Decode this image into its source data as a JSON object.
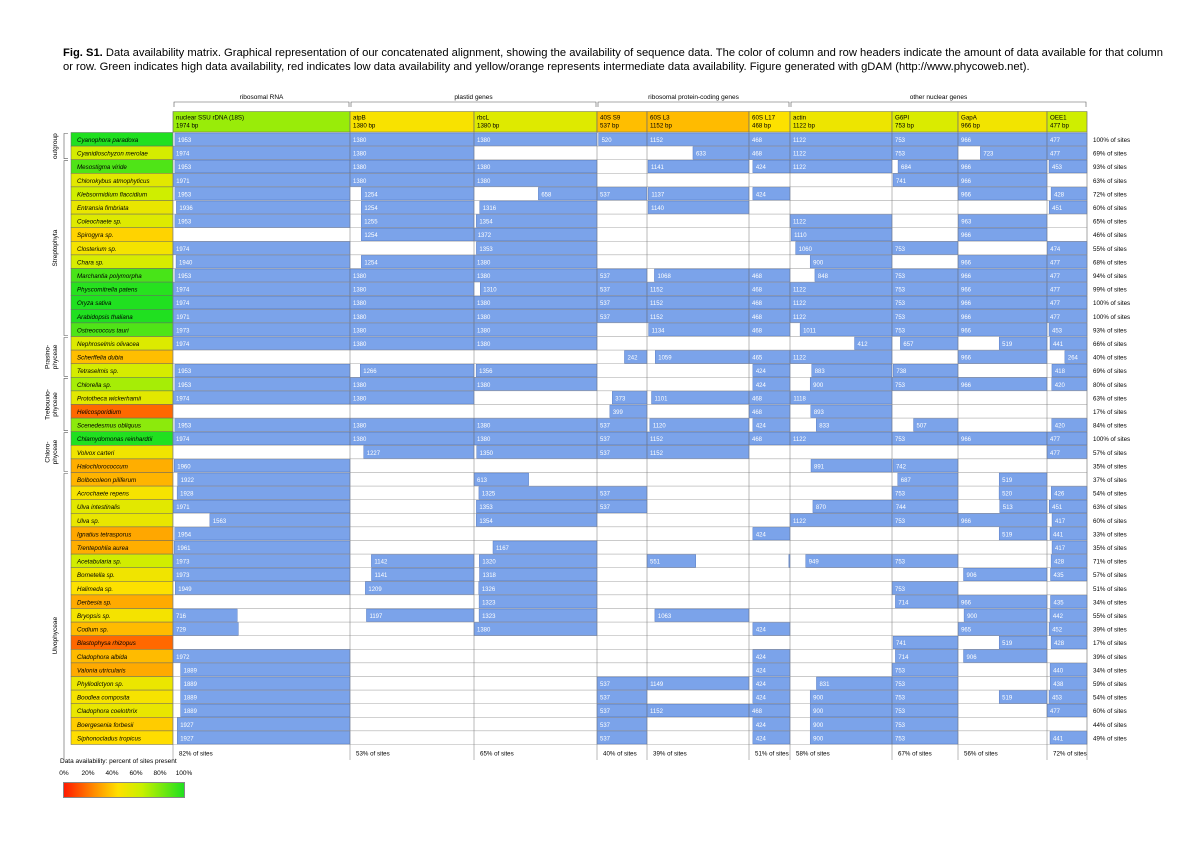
{
  "caption": {
    "label": "Fig. S1.",
    "text": "Data availability matrix. Graphical representation of our concatenated alignment, showing the availability of sequence data. The color of column and row headers indicate the amount of data available for that column or row. Green indicates high data availability, red indicates low data availability and yellow/orange represents intermediate data availability. Figure generated with gDAM (http://www.phycoweb.net)."
  },
  "legend": {
    "title": "Data availability: percent of sites present",
    "ticks": [
      "0%",
      "20%",
      "40%",
      "60%",
      "80%",
      "100%"
    ]
  },
  "colors": {
    "data_cell": "#7ba3ea",
    "data_text": "#ffffff",
    "scale": [
      "#ff1a00",
      "#ff8c00",
      "#ffe000",
      "#c8f000",
      "#20e020"
    ]
  },
  "chart_data": {
    "type": "table",
    "groups": [
      {
        "label": "ribosomal RNA",
        "genes": [
          0
        ]
      },
      {
        "label": "plastid genes",
        "genes": [
          1,
          2
        ]
      },
      {
        "label": "ribosomal protein-coding genes",
        "genes": [
          3,
          4,
          5
        ]
      },
      {
        "label": "other nuclear genes",
        "genes": [
          6,
          7,
          8,
          9
        ]
      }
    ],
    "genes": [
      {
        "name": "nuclear SSU rDNA (18S)",
        "length": "1974 bp",
        "bp": 1974,
        "pct": 82,
        "pct_label": "82% of sites"
      },
      {
        "name": "atpB",
        "length": "1380 bp",
        "bp": 1380,
        "pct": 53,
        "pct_label": "53% of sites"
      },
      {
        "name": "rbcL",
        "length": "1380 bp",
        "bp": 1380,
        "pct": 65,
        "pct_label": "65% of sites"
      },
      {
        "name": "40S S9",
        "length": "537 bp",
        "bp": 537,
        "pct": 40,
        "pct_label": "40% of sites"
      },
      {
        "name": "60S L3",
        "length": "1152 bp",
        "bp": 1152,
        "pct": 39,
        "pct_label": "39% of sites"
      },
      {
        "name": "60S L17",
        "length": "468 bp",
        "bp": 468,
        "pct": 51,
        "pct_label": "51% of sites"
      },
      {
        "name": "actin",
        "length": "1122 bp",
        "bp": 1122,
        "pct": 58,
        "pct_label": "58% of sites"
      },
      {
        "name": "G6PI",
        "length": "753 bp",
        "bp": 753,
        "pct": 67,
        "pct_label": "67% of sites"
      },
      {
        "name": "GapA",
        "length": "966 bp",
        "bp": 966,
        "pct": 56,
        "pct_label": "56% of sites"
      },
      {
        "name": "OEE1",
        "length": "477 bp",
        "bp": 477,
        "pct": 72,
        "pct_label": "72% of sites"
      }
    ],
    "clades": [
      {
        "label": "outgroup",
        "from": 0,
        "to": 1
      },
      {
        "label": "Streptophyta",
        "from": 2,
        "to": 14
      },
      {
        "label": "Prasino-\nphyceae",
        "from": 15,
        "to": 17
      },
      {
        "label": "Trebouxio-\nphyceae",
        "from": 18,
        "to": 21
      },
      {
        "label": "Chloro-\nphyceae",
        "from": 22,
        "to": 24
      },
      {
        "label": "Ulvophyceae",
        "from": 25,
        "to": 48
      }
    ],
    "taxa": [
      {
        "name": "Cyanophora paradoxa",
        "pct": 100,
        "cells": [
          1953,
          1380,
          1380,
          520,
          1152,
          468,
          1122,
          753,
          966,
          477
        ]
      },
      {
        "name": "Cyanidioschyzon merolae",
        "pct": 69,
        "cells": [
          1974,
          1380,
          null,
          null,
          [
            633,
            "r"
          ],
          468,
          1122,
          753,
          [
            723,
            "r"
          ],
          477
        ]
      },
      {
        "name": "Mesostigma viride",
        "pct": 93,
        "cells": [
          1953,
          1380,
          1380,
          null,
          1141,
          424,
          1122,
          [
            684,
            "r"
          ],
          966,
          453
        ]
      },
      {
        "name": "Chlorokybus atmophyticus",
        "pct": 63,
        "cells": [
          1971,
          1380,
          1380,
          null,
          null,
          null,
          null,
          741,
          966,
          null
        ]
      },
      {
        "name": "Klebsormidium flaccidium",
        "pct": 72,
        "cells": [
          1953,
          [
            1254,
            "r"
          ],
          [
            658,
            "r"
          ],
          537,
          1137,
          424,
          null,
          null,
          966,
          428
        ]
      },
      {
        "name": "Entransia fimbriata",
        "pct": 60,
        "cells": [
          [
            1936,
            "r"
          ],
          [
            1254,
            "r"
          ],
          [
            1316,
            "r"
          ],
          null,
          1140,
          null,
          null,
          null,
          null,
          451
        ]
      },
      {
        "name": "Coleochaete sp.",
        "pct": 65,
        "cells": [
          1953,
          [
            1255,
            "r"
          ],
          1354,
          null,
          null,
          null,
          1122,
          null,
          963,
          null
        ]
      },
      {
        "name": "Spirogyra sp.",
        "pct": 46,
        "cells": [
          null,
          [
            1254,
            "r"
          ],
          1372,
          null,
          null,
          null,
          1110,
          null,
          966,
          null
        ]
      },
      {
        "name": "Closterium sp.",
        "pct": 55,
        "cells": [
          1974,
          null,
          1353,
          null,
          null,
          null,
          [
            1060,
            "r"
          ],
          753,
          null,
          474
        ]
      },
      {
        "name": "Chara sp.",
        "pct": 68,
        "cells": [
          [
            1940,
            "r"
          ],
          [
            1254,
            "r"
          ],
          1380,
          null,
          null,
          null,
          [
            900,
            "r"
          ],
          null,
          966,
          477
        ]
      },
      {
        "name": "Marchantia polymorpha",
        "pct": 94,
        "cells": [
          1953,
          1380,
          1380,
          537,
          [
            1068,
            "r"
          ],
          468,
          [
            848,
            "r"
          ],
          753,
          966,
          477
        ]
      },
      {
        "name": "Physcomitrella patens",
        "pct": 99,
        "cells": [
          1974,
          1380,
          [
            1310,
            "r"
          ],
          537,
          1152,
          468,
          1122,
          753,
          966,
          477
        ]
      },
      {
        "name": "Oryza sativa",
        "pct": 100,
        "cells": [
          1974,
          1380,
          1380,
          537,
          1152,
          468,
          1122,
          753,
          966,
          477
        ]
      },
      {
        "name": "Arabidopsis thaliana",
        "pct": 100,
        "cells": [
          1971,
          1380,
          1380,
          537,
          1152,
          468,
          1122,
          753,
          966,
          477
        ]
      },
      {
        "name": "Ostreococcus tauri",
        "pct": 93,
        "cells": [
          1973,
          1380,
          1380,
          null,
          [
            1134,
            "r"
          ],
          468,
          [
            1011,
            "r"
          ],
          753,
          966,
          453
        ]
      },
      {
        "name": "Nephroselmis olivacea",
        "pct": 66,
        "cells": [
          1974,
          1380,
          1380,
          null,
          null,
          null,
          [
            412,
            "r"
          ],
          [
            657,
            "r"
          ],
          [
            519,
            "r"
          ],
          441
        ]
      },
      {
        "name": "Scherffelia dubia",
        "pct": 40,
        "cells": [
          null,
          null,
          null,
          [
            242,
            "r"
          ],
          [
            1059,
            "r"
          ],
          465,
          1122,
          null,
          966,
          [
            264,
            "r"
          ]
        ]
      },
      {
        "name": "Tetraselmis sp.",
        "pct": 69,
        "cells": [
          1953,
          [
            1266,
            "r"
          ],
          1356,
          null,
          null,
          424,
          [
            883,
            "r"
          ],
          738,
          null,
          [
            418,
            "r"
          ]
        ]
      },
      {
        "name": "Chlorella sp.",
        "pct": 80,
        "cells": [
          1953,
          1380,
          1380,
          null,
          null,
          424,
          900,
          753,
          966,
          420
        ]
      },
      {
        "name": "Prototheca wickerhamii",
        "pct": 63,
        "cells": [
          1974,
          1380,
          null,
          [
            373,
            "r"
          ],
          [
            1101,
            "r"
          ],
          468,
          1118,
          null,
          null,
          null
        ]
      },
      {
        "name": "Helicosporidium",
        "pct": 17,
        "cells": [
          null,
          null,
          null,
          399,
          null,
          468,
          [
            893,
            "r"
          ],
          null,
          null,
          null
        ]
      },
      {
        "name": "Scenedesmus obliquus",
        "pct": 84,
        "cells": [
          1953,
          1380,
          1380,
          537,
          1120,
          424,
          [
            833,
            "r"
          ],
          [
            507,
            "r"
          ],
          null,
          420
        ]
      },
      {
        "name": "Chlamydomonas reinhardtii",
        "pct": 100,
        "cells": [
          1974,
          1380,
          1380,
          537,
          1152,
          468,
          1122,
          753,
          966,
          477
        ]
      },
      {
        "name": "Volvox carteri",
        "pct": 57,
        "cells": [
          null,
          [
            1227,
            "r"
          ],
          1350,
          537,
          1152,
          null,
          null,
          null,
          null,
          477
        ]
      },
      {
        "name": "Halochlorococcum",
        "pct": 35,
        "cells": [
          1960,
          null,
          null,
          null,
          null,
          null,
          [
            891,
            "r"
          ],
          742,
          null,
          null
        ]
      },
      {
        "name": "Bolbocoleon piliferum",
        "pct": 37,
        "cells": [
          [
            1922,
            "r"
          ],
          null,
          [
            613,
            "l"
          ],
          null,
          null,
          null,
          null,
          [
            687,
            "r"
          ],
          [
            519,
            "r"
          ],
          null
        ]
      },
      {
        "name": "Acrochaete repens",
        "pct": 54,
        "cells": [
          [
            1928,
            "r"
          ],
          null,
          [
            1325,
            "r"
          ],
          537,
          null,
          null,
          null,
          753,
          [
            520,
            "r"
          ],
          [
            426,
            "r"
          ]
        ]
      },
      {
        "name": "Ulva intestinalis",
        "pct": 63,
        "cells": [
          1971,
          null,
          1353,
          537,
          null,
          null,
          [
            870,
            "r"
          ],
          744,
          [
            513,
            "r"
          ],
          451
        ]
      },
      {
        "name": "Ulva sp.",
        "pct": 60,
        "cells": [
          [
            1563,
            "r"
          ],
          null,
          1354,
          null,
          null,
          null,
          1122,
          753,
          966,
          [
            417,
            "r"
          ]
        ]
      },
      {
        "name": "Ignatius tetrasporus",
        "pct": 33,
        "cells": [
          1954,
          null,
          null,
          null,
          null,
          424,
          null,
          null,
          [
            519,
            "r"
          ],
          441
        ]
      },
      {
        "name": "Trentepohlia aurea",
        "pct": 35,
        "cells": [
          1961,
          null,
          [
            1167,
            "r"
          ],
          null,
          null,
          null,
          null,
          null,
          null,
          [
            417,
            "r"
          ]
        ]
      },
      {
        "name": "Acetabularia sp.",
        "pct": 71,
        "cells": [
          1973,
          [
            1142,
            "r"
          ],
          1320,
          null,
          [
            551,
            "l"
          ],
          [
            13,
            "r"
          ],
          [
            949,
            "r"
          ],
          753,
          null,
          428
        ]
      },
      {
        "name": "Bornetella sp.",
        "pct": 57,
        "cells": [
          1973,
          [
            1141,
            "r"
          ],
          1318,
          null,
          null,
          null,
          null,
          null,
          [
            906,
            "r"
          ],
          [
            435,
            "r"
          ]
        ]
      },
      {
        "name": "Halimeda sp.",
        "pct": 51,
        "cells": [
          1949,
          [
            1209,
            "r"
          ],
          1326,
          null,
          null,
          null,
          null,
          753,
          null,
          null
        ]
      },
      {
        "name": "Derbesia sp.",
        "pct": 34,
        "cells": [
          null,
          null,
          1323,
          null,
          null,
          null,
          null,
          [
            714,
            "r"
          ],
          966,
          [
            435,
            "r"
          ]
        ]
      },
      {
        "name": "Bryopsis sp.",
        "pct": 55,
        "cells": [
          [
            716,
            "l"
          ],
          [
            1197,
            "r"
          ],
          1323,
          null,
          [
            1063,
            "r"
          ],
          null,
          null,
          null,
          [
            900,
            "r"
          ],
          442
        ]
      },
      {
        "name": "Codium sp.",
        "pct": 39,
        "cells": [
          [
            729,
            "l"
          ],
          null,
          1380,
          null,
          null,
          424,
          null,
          null,
          [
            965,
            "r"
          ],
          452
        ]
      },
      {
        "name": "Blastophysa rhizopus",
        "pct": 17,
        "cells": [
          null,
          null,
          null,
          null,
          null,
          null,
          null,
          741,
          [
            519,
            "r"
          ],
          428
        ]
      },
      {
        "name": "Cladophora albida",
        "pct": 39,
        "cells": [
          1972,
          null,
          null,
          null,
          null,
          424,
          null,
          [
            714,
            "r"
          ],
          [
            906,
            "r"
          ],
          null
        ]
      },
      {
        "name": "Valonia utricularis",
        "pct": 34,
        "cells": [
          [
            1889,
            "r"
          ],
          null,
          null,
          null,
          null,
          424,
          null,
          753,
          null,
          440
        ]
      },
      {
        "name": "Phyllodictyon sp.",
        "pct": 59,
        "cells": [
          [
            1889,
            "r"
          ],
          null,
          null,
          537,
          [
            1149,
            "r"
          ],
          424,
          [
            831,
            "r"
          ],
          753,
          null,
          [
            438,
            "r"
          ]
        ]
      },
      {
        "name": "Boodlea composita",
        "pct": 54,
        "cells": [
          [
            1889,
            "r"
          ],
          null,
          null,
          537,
          null,
          424,
          [
            900,
            "r"
          ],
          753,
          [
            519,
            "r"
          ],
          453
        ]
      },
      {
        "name": "Cladophora coelothrix",
        "pct": 60,
        "cells": [
          [
            1889,
            "r"
          ],
          null,
          null,
          537,
          1152,
          468,
          [
            900,
            "r"
          ],
          753,
          null,
          477
        ]
      },
      {
        "name": "Boergesenia forbesii",
        "pct": 44,
        "cells": [
          [
            1927,
            "r"
          ],
          null,
          null,
          537,
          null,
          424,
          [
            900,
            "r"
          ],
          753,
          null,
          null
        ]
      },
      {
        "name": "Siphonocladus tropicus",
        "pct": 49,
        "cells": [
          [
            1927,
            "r"
          ],
          null,
          null,
          537,
          null,
          424,
          [
            900,
            "r"
          ],
          753,
          null,
          441
        ]
      }
    ]
  }
}
